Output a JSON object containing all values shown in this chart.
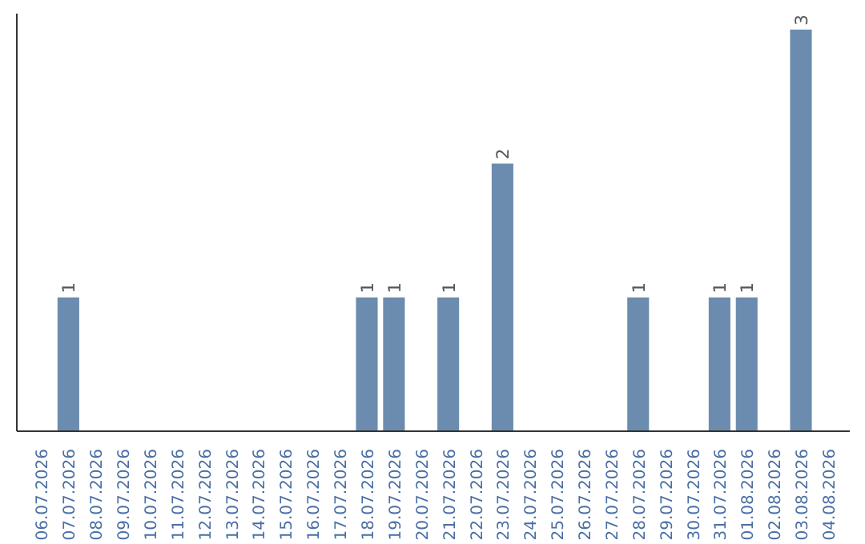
{
  "chart_data": {
    "type": "bar",
    "categories": [
      "06.07.2026",
      "07.07.2026",
      "08.07.2026",
      "09.07.2026",
      "10.07.2026",
      "11.07.2026",
      "12.07.2026",
      "13.07.2026",
      "14.07.2026",
      "15.07.2026",
      "16.07.2026",
      "17.07.2026",
      "18.07.2026",
      "19.07.2026",
      "20.07.2026",
      "21.07.2026",
      "22.07.2026",
      "23.07.2026",
      "24.07.2026",
      "25.07.2026",
      "26.07.2026",
      "27.07.2026",
      "28.07.2026",
      "29.07.2026",
      "30.07.2026",
      "31.07.2026",
      "01.08.2026",
      "02.08.2026",
      "03.08.2026",
      "04.08.2026"
    ],
    "values": [
      0,
      1,
      0,
      0,
      0,
      0,
      0,
      0,
      0,
      0,
      0,
      0,
      1,
      1,
      0,
      1,
      0,
      2,
      0,
      0,
      0,
      0,
      1,
      0,
      0,
      1,
      1,
      0,
      3,
      0
    ],
    "value_labels": [
      null,
      "1",
      null,
      null,
      null,
      null,
      null,
      null,
      null,
      null,
      null,
      null,
      "1",
      "1",
      null,
      "1",
      null,
      "2",
      null,
      null,
      null,
      null,
      "1",
      null,
      null,
      "1",
      "1",
      null,
      "3",
      null
    ],
    "color": "#6b8cae",
    "tick_labels": "x",
    "grid": false
  }
}
